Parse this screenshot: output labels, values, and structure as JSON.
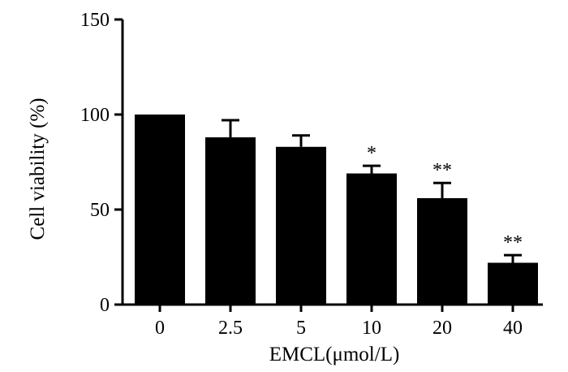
{
  "chart_data": {
    "type": "bar",
    "title": "",
    "xlabel": "EMCL(μmol/L)",
    "ylabel": "Cell viability (%)",
    "categories": [
      "0",
      "2.5",
      "5",
      "10",
      "20",
      "40"
    ],
    "values": [
      100,
      88,
      83,
      69,
      56,
      22
    ],
    "error_plus": [
      0,
      9,
      6,
      4,
      8,
      4
    ],
    "significance": [
      "",
      "",
      "",
      "*",
      "**",
      "**"
    ],
    "ylim": [
      0,
      150
    ],
    "yticks": [
      0,
      50,
      100,
      150
    ],
    "bar_color": "#000000",
    "grid": false
  }
}
